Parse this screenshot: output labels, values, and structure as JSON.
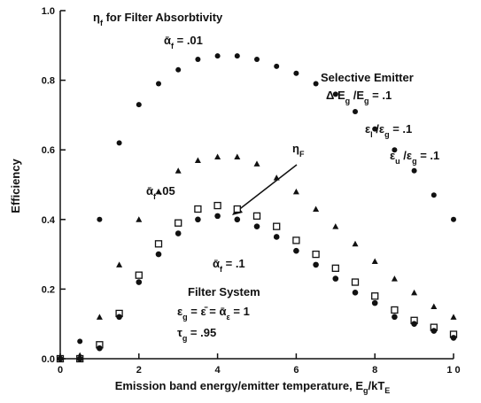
{
  "chart_data": {
    "type": "scatter",
    "x_label": [
      "Emission band  energy/emitter temperature, E",
      "g",
      "/kT",
      "E"
    ],
    "y_label": "Efficiency",
    "xlim": [
      0,
      10
    ],
    "ylim": [
      0,
      1.0
    ],
    "xticks": [
      0,
      2,
      4,
      6,
      8,
      {
        "value": 10,
        "label": "1 0"
      }
    ],
    "yticks": [
      {
        "value": 0,
        "label": "0.0"
      },
      {
        "value": 0.2,
        "label": "0.2"
      },
      {
        "value": 0.4,
        "label": "0.4"
      },
      {
        "value": 0.6,
        "label": "0.6"
      },
      {
        "value": 0.8,
        "label": "0.8"
      },
      {
        "value": 1.0,
        "label": "1.0"
      }
    ],
    "x": [
      0,
      0.5,
      1,
      1.5,
      2,
      2.5,
      3,
      3.5,
      4,
      4.5,
      5,
      5.5,
      6,
      6.5,
      7,
      7.5,
      8,
      8.5,
      9,
      9.5,
      10
    ],
    "series": [
      {
        "marker": "circle",
        "color": "#111",
        "values": [
          0,
          0.05,
          0.4,
          0.62,
          0.73,
          0.79,
          0.83,
          0.86,
          0.87,
          0.87,
          0.86,
          0.84,
          0.82,
          0.79,
          0.76,
          0.71,
          0.66,
          0.6,
          0.54,
          0.47,
          0.4
        ]
      },
      {
        "marker": "triangle",
        "color": "#111",
        "values": [
          0,
          0.01,
          0.12,
          0.27,
          0.4,
          0.48,
          0.54,
          0.57,
          0.58,
          0.58,
          0.56,
          0.52,
          0.48,
          0.43,
          0.38,
          0.33,
          0.28,
          0.23,
          0.19,
          0.15,
          0.12
        ]
      },
      {
        "marker": "square",
        "color": "#111",
        "values": [
          0,
          0,
          0.04,
          0.13,
          0.24,
          0.33,
          0.39,
          0.43,
          0.44,
          0.43,
          0.41,
          0.38,
          0.34,
          0.3,
          0.26,
          0.22,
          0.18,
          0.14,
          0.11,
          0.09,
          0.07
        ]
      },
      {
        "marker": "dot",
        "color": "#111",
        "values": [
          0,
          0,
          0.03,
          0.12,
          0.22,
          0.3,
          0.36,
          0.4,
          0.41,
          0.4,
          0.38,
          0.35,
          0.31,
          0.27,
          0.23,
          0.19,
          0.16,
          0.12,
          0.1,
          0.08,
          0.06
        ]
      }
    ],
    "annotations": [
      [
        "η",
        "f",
        "   for   Filter   Absorbtivity"
      ],
      [
        "ᾱ",
        "f",
        " = .01"
      ],
      [
        "Selective   Emitter"
      ],
      [
        "Δ E",
        "g",
        " /E",
        "g",
        " = .1"
      ],
      [
        "ε",
        "l",
        " /ε",
        "g",
        " = .1"
      ],
      [
        "ε",
        "u",
        " /ε",
        "g",
        " = .1"
      ],
      [
        "ᾱ",
        "f",
        "  .05"
      ],
      [
        "η",
        "F"
      ],
      [
        "ᾱ",
        "f",
        " = .1"
      ],
      [
        "Filter   System"
      ],
      [
        "ε",
        "g",
        " = ε̄ = ᾱ",
        "ε",
        " = 1"
      ],
      [
        "τ",
        "g",
        " = .95"
      ]
    ]
  }
}
